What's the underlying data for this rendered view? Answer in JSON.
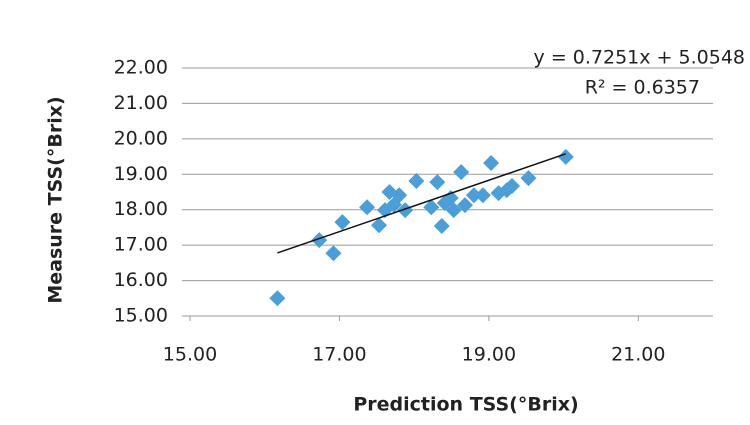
{
  "chart_data": {
    "type": "scatter",
    "x_label": "Prediction TSS(°Brix)",
    "y_label": "Measure TSS(°Brix)",
    "xlim": [
      15,
      22
    ],
    "ylim": [
      15,
      22
    ],
    "xticks": [
      {
        "value": 15,
        "label": "15.00"
      },
      {
        "value": 17,
        "label": "17.00"
      },
      {
        "value": 19,
        "label": "19.00"
      },
      {
        "value": 21,
        "label": "21.00"
      }
    ],
    "yticks": [
      {
        "value": 15,
        "label": "15.00"
      },
      {
        "value": 16,
        "label": "16.00"
      },
      {
        "value": 17,
        "label": "17.00"
      },
      {
        "value": 18,
        "label": "18.00"
      },
      {
        "value": 19,
        "label": "19.00"
      },
      {
        "value": 20,
        "label": "20.00"
      },
      {
        "value": 21,
        "label": "21.00"
      },
      {
        "value": 22,
        "label": "22.00"
      }
    ],
    "grid": true,
    "color": "#4a9fd8",
    "x": [
      16.17,
      16.73,
      16.92,
      17.04,
      17.37,
      17.53,
      17.61,
      17.67,
      17.73,
      17.8,
      17.88,
      18.03,
      18.23,
      18.31,
      18.37,
      18.41,
      18.49,
      18.53,
      18.63,
      18.68,
      18.8,
      18.92,
      19.03,
      19.13,
      19.24,
      19.31,
      19.53,
      20.03
    ],
    "y": [
      15.5,
      17.14,
      16.77,
      17.65,
      18.07,
      17.56,
      17.99,
      18.5,
      18.14,
      18.41,
      17.99,
      18.81,
      18.07,
      18.78,
      17.54,
      18.19,
      18.33,
      17.99,
      19.06,
      18.13,
      18.41,
      18.41,
      19.32,
      18.47,
      18.55,
      18.67,
      18.89,
      19.49
    ],
    "trendline": {
      "slope": 0.7251,
      "intercept": 5.0548,
      "equation": "y = 0.7251x + 5.0548",
      "r2": "R² = 0.6357"
    }
  }
}
